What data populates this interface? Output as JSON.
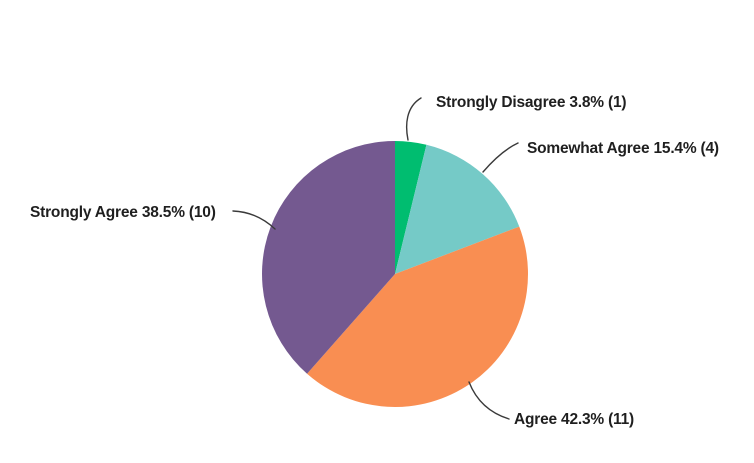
{
  "chart_data": {
    "type": "pie",
    "title": "",
    "legend": "none",
    "direction": "clockwise",
    "start_angle_deg": 0,
    "slices": [
      {
        "id": "strongly-disagree",
        "label": "Strongly Disagree",
        "pct": 3.8,
        "count": 1,
        "color": "#00bd70",
        "callout": "Strongly Disagree 3.8% (1)"
      },
      {
        "id": "somewhat-agree",
        "label": "Somewhat Agree",
        "pct": 15.4,
        "count": 4,
        "color": "#75cac7",
        "callout": "Somewhat Agree 15.4% (4)"
      },
      {
        "id": "agree",
        "label": "Agree",
        "pct": 42.3,
        "count": 11,
        "color": "#f98e52",
        "callout": "Agree 42.3% (11)"
      },
      {
        "id": "strongly-agree",
        "label": "Strongly Agree",
        "pct": 38.5,
        "count": 10,
        "color": "#745990",
        "callout": "Strongly Agree 38.5% (10)"
      }
    ]
  }
}
